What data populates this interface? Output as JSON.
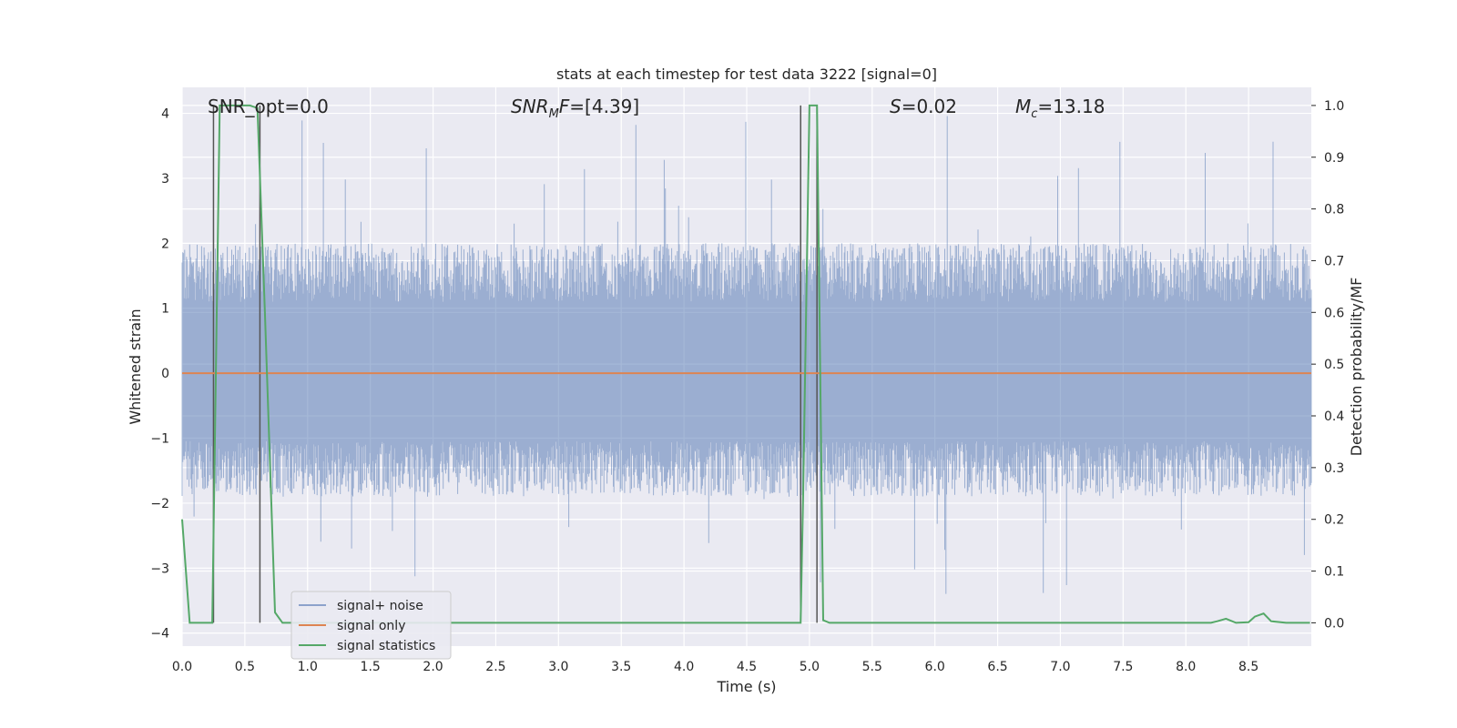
{
  "chart_data": {
    "type": "line",
    "title": "stats at each timestep for test data 3222 [signal=0]",
    "xlabel": "Time (s)",
    "ylabel": "Whitened strain",
    "ylabel_right": "Detection probability/MF",
    "xlim": [
      0.0,
      9.0
    ],
    "ylim": [
      -4.2,
      4.4
    ],
    "ylim_right": [
      -0.045,
      1.035
    ],
    "x_ticks": [
      0.0,
      0.5,
      1.0,
      1.5,
      2.0,
      2.5,
      3.0,
      3.5,
      4.0,
      4.5,
      5.0,
      5.5,
      6.0,
      6.5,
      7.0,
      7.5,
      8.0,
      8.5
    ],
    "x_tick_labels": [
      "0.0",
      "0.5",
      "1.0",
      "1.5",
      "2.0",
      "2.5",
      "3.0",
      "3.5",
      "4.0",
      "4.5",
      "5.0",
      "5.5",
      "6.0",
      "6.5",
      "7.0",
      "7.5",
      "8.0",
      "8.5"
    ],
    "y_ticks": [
      -4,
      -3,
      -2,
      -1,
      0,
      1,
      2,
      3,
      4
    ],
    "y_tick_labels": [
      "−4",
      "−3",
      "−2",
      "−1",
      "0",
      "1",
      "2",
      "3",
      "4"
    ],
    "y_right_ticks": [
      0.0,
      0.1,
      0.2,
      0.3,
      0.4,
      0.5,
      0.6,
      0.7,
      0.8,
      0.9,
      1.0
    ],
    "y_right_tick_labels": [
      "0.0",
      "0.1",
      "0.2",
      "0.3",
      "0.4",
      "0.5",
      "0.6",
      "0.7",
      "0.8",
      "0.9",
      "1.0"
    ],
    "grid": true,
    "legend_position": "lower-left",
    "annotations": [
      {
        "id": "snr-opt",
        "text": "SNR_opt=0.0"
      },
      {
        "id": "snr-mf",
        "text": "SNR",
        "sub": "M",
        "tail": "F=[4.39]"
      },
      {
        "id": "s-value",
        "text": "S",
        "tail": "=0.02"
      },
      {
        "id": "mc-value",
        "text": "M",
        "sub": "c",
        "tail": "=13.18"
      }
    ],
    "series": [
      {
        "name": "signal+ noise",
        "color": "#4c72b0",
        "axis": "left",
        "note": "whitened noise strain, roughly within ±2 with spikes up to 4 and down to -3.7",
        "envelope": {
          "typical_max": 2.0,
          "typical_min": -1.9,
          "peak_max": 4.0,
          "peak_min": -3.7
        }
      },
      {
        "name": "signal only",
        "color": "#dd8452",
        "axis": "left",
        "x": [
          0.0,
          9.0
        ],
        "y": [
          0.0,
          0.0
        ]
      },
      {
        "name": "signal statistics",
        "color": "#55a868",
        "axis": "right",
        "x": [
          0.0,
          0.06,
          0.12,
          0.18,
          0.24,
          0.3,
          0.36,
          0.42,
          0.48,
          0.54,
          0.6,
          0.66,
          0.74,
          0.8,
          0.9,
          1.0,
          4.93,
          4.95,
          5.0,
          5.06,
          5.11,
          5.16,
          5.2,
          5.5,
          8.0,
          8.2,
          8.25,
          8.32,
          8.4,
          8.5,
          8.55,
          8.62,
          8.68,
          8.8,
          8.99
        ],
        "y": [
          0.2,
          0.0,
          0.0,
          0.0,
          0.0,
          1.0,
          1.0,
          1.0,
          1.0,
          1.0,
          0.995,
          0.6,
          0.02,
          0.0,
          0.0,
          0.0,
          0.0,
          0.25,
          1.0,
          1.0,
          0.005,
          0.0,
          0.0,
          0.0,
          0.0,
          0.0,
          0.003,
          0.008,
          0.0,
          0.001,
          0.012,
          0.018,
          0.003,
          0.0,
          0.0
        ]
      }
    ],
    "vertical_markers": [
      0.25,
      0.62,
      4.93,
      5.06
    ],
    "colors": {
      "plot_bg": "#eaeaf2",
      "grid": "#ffffff",
      "marker_line": "#555555"
    }
  }
}
